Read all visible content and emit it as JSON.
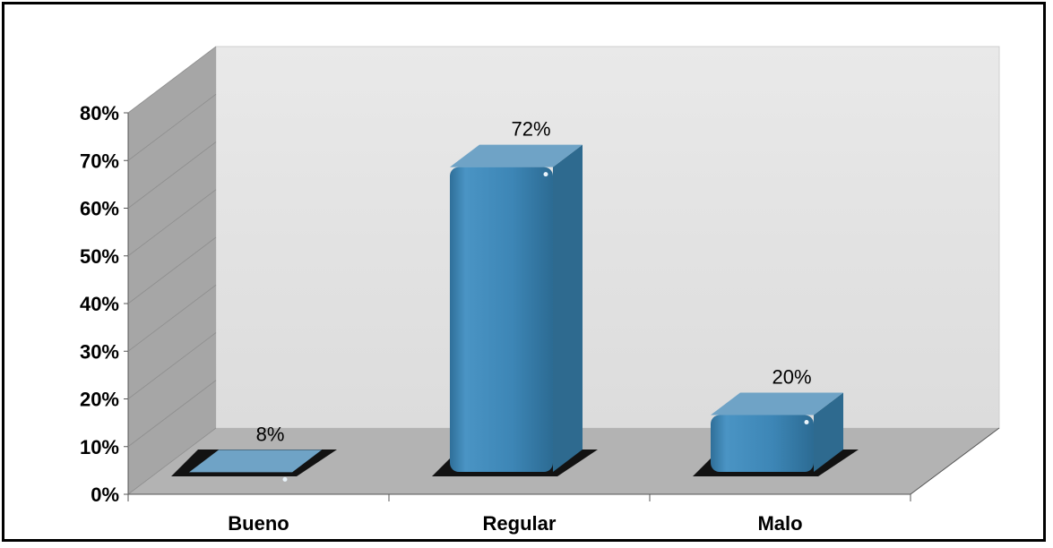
{
  "chart_data": {
    "type": "bar",
    "categories": [
      "Bueno",
      "Regular",
      "Malo"
    ],
    "values": [
      8,
      72,
      20
    ],
    "data_labels": [
      "8%",
      "72%",
      "20%"
    ],
    "yticks": [
      "0%",
      "10%",
      "20%",
      "30%",
      "40%",
      "50%",
      "60%",
      "70%",
      "80%"
    ],
    "ylim": [
      0,
      80
    ],
    "title": "",
    "xlabel": "",
    "ylabel": "",
    "grid": false,
    "legend": "none",
    "colors": {
      "bar": "#3f87b5",
      "bar_side": "#2e6a8f",
      "wall": "#e3e3e3",
      "side_wall": "#a6a6a6",
      "floor": "#b3b3b3"
    }
  }
}
